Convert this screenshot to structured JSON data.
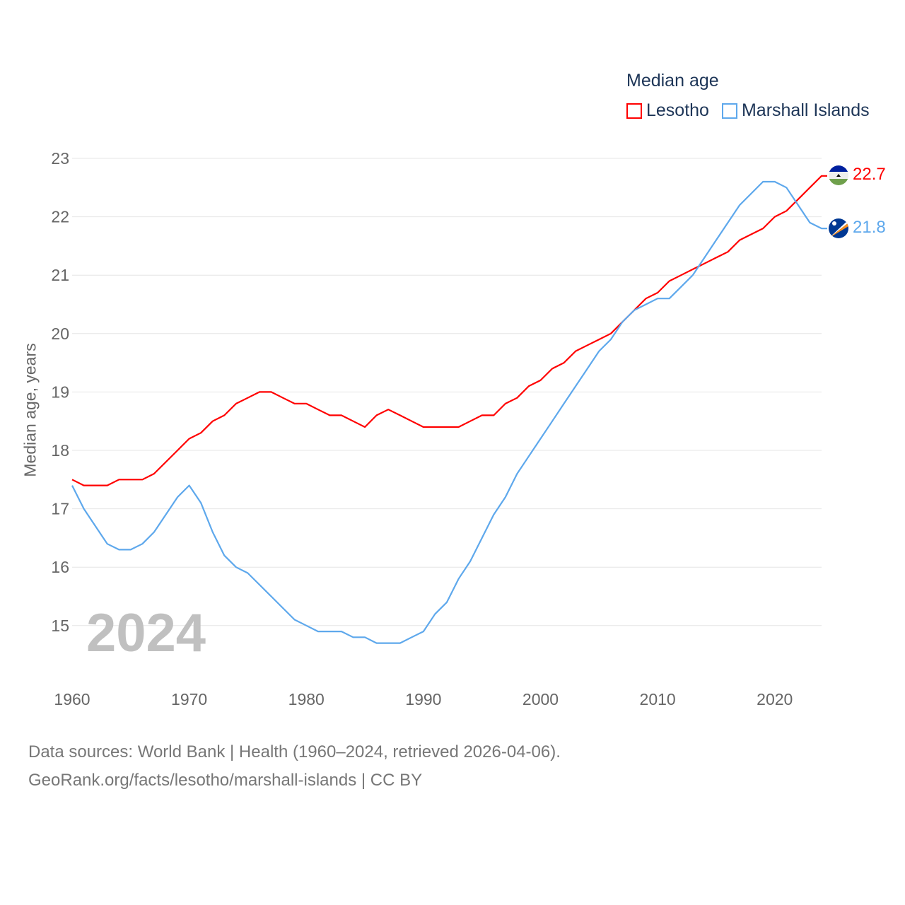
{
  "legend": {
    "title": "Median age",
    "items": [
      "Lesotho",
      "Marshall Islands"
    ]
  },
  "watermark_year": "2024",
  "footer": {
    "line1": "Data sources: World Bank | Health (1960–2024, retrieved 2026-04-06).",
    "line2": "GeoRank.org/facts/lesotho/marshall-islands | CC BY"
  },
  "end_labels": {
    "lesotho": "22.7",
    "marshall": "21.8"
  },
  "chart_data": {
    "type": "line",
    "title": "Median age",
    "xlabel": "",
    "ylabel": "Median age, years",
    "xlim": [
      1960,
      2024
    ],
    "ylim": [
      14.5,
      23
    ],
    "yticks": [
      "15",
      "16",
      "17",
      "18",
      "19",
      "20",
      "21",
      "22",
      "23"
    ],
    "xticks": [
      "1960",
      "1970",
      "1980",
      "1990",
      "2000",
      "2010",
      "2020"
    ],
    "grid": true,
    "legend_position": "top-right",
    "x_start": 1960,
    "series": [
      {
        "name": "Lesotho",
        "color": "#ff0000",
        "values": [
          17.5,
          17.4,
          17.4,
          17.4,
          17.5,
          17.5,
          17.5,
          17.6,
          17.8,
          18.0,
          18.2,
          18.3,
          18.5,
          18.6,
          18.8,
          18.9,
          19.0,
          19.0,
          18.9,
          18.8,
          18.8,
          18.7,
          18.6,
          18.6,
          18.5,
          18.4,
          18.6,
          18.7,
          18.6,
          18.5,
          18.4,
          18.4,
          18.4,
          18.4,
          18.5,
          18.6,
          18.6,
          18.8,
          18.9,
          19.1,
          19.2,
          19.4,
          19.5,
          19.7,
          19.8,
          19.9,
          20.0,
          20.2,
          20.4,
          20.6,
          20.7,
          20.9,
          21.0,
          21.1,
          21.2,
          21.3,
          21.4,
          21.6,
          21.7,
          21.8,
          22.0,
          22.1,
          22.3,
          22.5,
          22.7
        ]
      },
      {
        "name": "Marshall Islands",
        "color": "#5ea8ec",
        "values": [
          17.4,
          17.0,
          16.7,
          16.4,
          16.3,
          16.3,
          16.4,
          16.6,
          16.9,
          17.2,
          17.4,
          17.1,
          16.6,
          16.2,
          16.0,
          15.9,
          15.7,
          15.5,
          15.3,
          15.1,
          15.0,
          14.9,
          14.9,
          14.9,
          14.8,
          14.8,
          14.7,
          14.7,
          14.7,
          14.8,
          14.9,
          15.2,
          15.4,
          15.8,
          16.1,
          16.5,
          16.9,
          17.2,
          17.6,
          17.9,
          18.2,
          18.5,
          18.8,
          19.1,
          19.4,
          19.7,
          19.9,
          20.2,
          20.4,
          20.5,
          20.6,
          20.6,
          20.8,
          21.0,
          21.3,
          21.6,
          21.9,
          22.2,
          22.4,
          22.6,
          22.6,
          22.5,
          22.2,
          21.9,
          21.8
        ]
      }
    ]
  }
}
